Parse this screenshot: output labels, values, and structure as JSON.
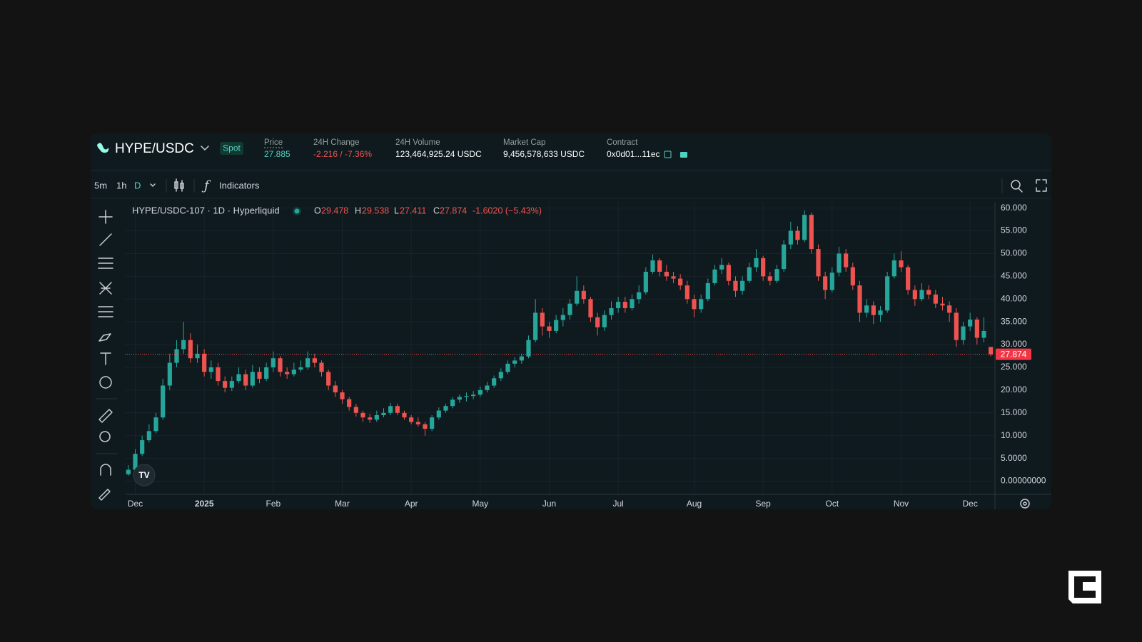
{
  "header": {
    "pair": "HYPE/USDC",
    "market": "Spot",
    "stats": [
      {
        "label": "Price",
        "value": "27.885"
      },
      {
        "label": "24H Change",
        "value": "-2.216 / -7.36%"
      },
      {
        "label": "24H Volume",
        "value": "123,464,925.24 USDC"
      },
      {
        "label": "Market Cap",
        "value": "9,456,578,633 USDC"
      },
      {
        "label": "Contract",
        "value": "0x0d01...11ec"
      }
    ]
  },
  "toolbar": {
    "intervals": [
      "5m",
      "1h",
      "D"
    ],
    "indicators": "Indicators"
  },
  "chart_data": {
    "type": "candlestick",
    "legend_title": "HYPE/USDC-107 · 1D · Hyperliquid",
    "ohlc_labels": [
      "O",
      "H",
      "L",
      "C"
    ],
    "change_label": "-1.6020 (−5.43%)",
    "up_color": "#26a69a",
    "down_color": "#ef5350",
    "grid": true,
    "ylim": [
      -2.9,
      61.2
    ],
    "yticks": [
      {
        "value": 0,
        "label": "0.00000000"
      },
      {
        "value": 5,
        "label": "5.0000"
      },
      {
        "value": 10,
        "label": "10.000"
      },
      {
        "value": 15,
        "label": "15.000"
      },
      {
        "value": 20,
        "label": "20.000"
      },
      {
        "value": 25,
        "label": "25.000"
      },
      {
        "value": 30,
        "label": "30.000"
      },
      {
        "value": 35,
        "label": "35.000"
      },
      {
        "value": 40,
        "label": "40.000"
      },
      {
        "value": 45,
        "label": "45.000"
      },
      {
        "value": 50,
        "label": "50.000"
      },
      {
        "value": 55,
        "label": "55.000"
      },
      {
        "value": 60,
        "label": "60.000"
      }
    ],
    "categories": [
      null,
      "Dec",
      null,
      null,
      null,
      null,
      null,
      null,
      null,
      null,
      null,
      "2025",
      null,
      null,
      null,
      null,
      null,
      null,
      null,
      null,
      null,
      "Feb",
      null,
      null,
      null,
      null,
      null,
      null,
      null,
      null,
      null,
      "Mar",
      null,
      null,
      null,
      null,
      null,
      null,
      null,
      null,
      null,
      "Apr",
      null,
      null,
      null,
      null,
      null,
      null,
      null,
      null,
      null,
      "May",
      null,
      null,
      null,
      null,
      null,
      null,
      null,
      null,
      null,
      "Jun",
      null,
      null,
      null,
      null,
      null,
      null,
      null,
      null,
      null,
      "Jul",
      null,
      null,
      null,
      null,
      null,
      null,
      null,
      null,
      null,
      null,
      "Aug",
      null,
      null,
      null,
      null,
      null,
      null,
      null,
      null,
      null,
      "Sep",
      null,
      null,
      null,
      null,
      null,
      null,
      null,
      null,
      null,
      "Oct",
      null,
      null,
      null,
      null,
      null,
      null,
      null,
      null,
      null,
      "Nov",
      null,
      null,
      null,
      null,
      null,
      null,
      null,
      null,
      null,
      "Dec",
      null,
      null,
      null
    ],
    "ohlc": [
      [
        1.5,
        3.5,
        1.2,
        2.5
      ],
      [
        2.5,
        7,
        2.2,
        6
      ],
      [
        6,
        10,
        5.5,
        9
      ],
      [
        9,
        12.5,
        8.5,
        11
      ],
      [
        11,
        15,
        10.5,
        14
      ],
      [
        14,
        22.5,
        13.5,
        21
      ],
      [
        21,
        28,
        20,
        26
      ],
      [
        26,
        31,
        25,
        29
      ],
      [
        29,
        35,
        28,
        31
      ],
      [
        31,
        32.5,
        26,
        27
      ],
      [
        27,
        30,
        26,
        28
      ],
      [
        28,
        29,
        23,
        24
      ],
      [
        24,
        26.5,
        22.5,
        25
      ],
      [
        25,
        26,
        21,
        22
      ],
      [
        22,
        23,
        19.5,
        20.5
      ],
      [
        20.5,
        23,
        19.8,
        22
      ],
      [
        22,
        25,
        21.5,
        23.5
      ],
      [
        23.5,
        24.5,
        20,
        21
      ],
      [
        21,
        25.5,
        20.5,
        24
      ],
      [
        24,
        25,
        21.5,
        22.5
      ],
      [
        22.5,
        26,
        22,
        25
      ],
      [
        25,
        28.5,
        24,
        27
      ],
      [
        27,
        27.5,
        23,
        24
      ],
      [
        24,
        25,
        22.5,
        23.5
      ],
      [
        23.5,
        26,
        23,
        24.5
      ],
      [
        24.5,
        26.5,
        24,
        25
      ],
      [
        25,
        28.5,
        24.5,
        27
      ],
      [
        27,
        28,
        25,
        26
      ],
      [
        26,
        26.5,
        23,
        24
      ],
      [
        24,
        24.5,
        20,
        21
      ],
      [
        21,
        22,
        18.5,
        19.5
      ],
      [
        19.5,
        20,
        17,
        18
      ],
      [
        18,
        18.5,
        15.5,
        16.3
      ],
      [
        16.3,
        17,
        14.2,
        15
      ],
      [
        15,
        15.5,
        13,
        14
      ],
      [
        14,
        14.8,
        12.8,
        13.5
      ],
      [
        13.5,
        15.5,
        13,
        14.5
      ],
      [
        14.5,
        16,
        14,
        15
      ],
      [
        15,
        17.2,
        14.5,
        16.5
      ],
      [
        16.5,
        17,
        14.5,
        15
      ],
      [
        15,
        15.5,
        13.5,
        14
      ],
      [
        14,
        14.5,
        12.5,
        13
      ],
      [
        13,
        14,
        12,
        12.5
      ],
      [
        12.5,
        13,
        10,
        11.5
      ],
      [
        11.5,
        14.5,
        11,
        14
      ],
      [
        14,
        16.2,
        13.5,
        15.5
      ],
      [
        15.5,
        17,
        15,
        16.5
      ],
      [
        16.5,
        18.5,
        16,
        17.9
      ],
      [
        17.9,
        19,
        17.2,
        18.5
      ],
      [
        18.5,
        19.5,
        17.5,
        18.7
      ],
      [
        18.7,
        19.8,
        18,
        19
      ],
      [
        19,
        20.8,
        18.5,
        20
      ],
      [
        20,
        21.8,
        19.5,
        21
      ],
      [
        21,
        23.2,
        20.5,
        22.6
      ],
      [
        22.6,
        24.8,
        22,
        24
      ],
      [
        24,
        26.5,
        23.5,
        25.8
      ],
      [
        25.8,
        27.2,
        25,
        26.5
      ],
      [
        26.5,
        28,
        25.8,
        27.4
      ],
      [
        27.4,
        32,
        27,
        31
      ],
      [
        31,
        40,
        30.5,
        37
      ],
      [
        37,
        38,
        32,
        34
      ],
      [
        34,
        35,
        31.5,
        33
      ],
      [
        33,
        36.5,
        32.5,
        35.4
      ],
      [
        35.4,
        38,
        34,
        36.5
      ],
      [
        36.5,
        40,
        35.5,
        39
      ],
      [
        39,
        45,
        38.5,
        41.8
      ],
      [
        41.8,
        43,
        39,
        40
      ],
      [
        40,
        40.5,
        35,
        36
      ],
      [
        36,
        37,
        32,
        33.8
      ],
      [
        33.8,
        37.5,
        33,
        36.5
      ],
      [
        36.5,
        39.5,
        35.5,
        38
      ],
      [
        38,
        40.5,
        37,
        39.4
      ],
      [
        39.4,
        40.5,
        37,
        38
      ],
      [
        38,
        41,
        37.5,
        40
      ],
      [
        40,
        43,
        39,
        41.5
      ],
      [
        41.5,
        47,
        41,
        46
      ],
      [
        46,
        49.8,
        45.5,
        48.5
      ],
      [
        48.5,
        49,
        45,
        46
      ],
      [
        46,
        47.5,
        44,
        45
      ],
      [
        45,
        46,
        43.5,
        44.5
      ],
      [
        44.5,
        45.5,
        42,
        43
      ],
      [
        43,
        44,
        39,
        40
      ],
      [
        40,
        41,
        36,
        37.8
      ],
      [
        37.8,
        41,
        37,
        40
      ],
      [
        40,
        44.5,
        39.5,
        43.5
      ],
      [
        43.5,
        47.5,
        43,
        46.5
      ],
      [
        46.5,
        49,
        45.5,
        47.5
      ],
      [
        47.5,
        48,
        43,
        44
      ],
      [
        44,
        45,
        40.5,
        41.8
      ],
      [
        41.8,
        45,
        41,
        44
      ],
      [
        44,
        48,
        43.5,
        47
      ],
      [
        47,
        51,
        46,
        49
      ],
      [
        49,
        49.5,
        44,
        45
      ],
      [
        45,
        46,
        43,
        44
      ],
      [
        44,
        47.5,
        43.5,
        46.6
      ],
      [
        46.6,
        53,
        46,
        52
      ],
      [
        52,
        57,
        51,
        55
      ],
      [
        55,
        56,
        52,
        53
      ],
      [
        53,
        59.5,
        52.5,
        58.5
      ],
      [
        58.5,
        59,
        50,
        51
      ],
      [
        51,
        52,
        44,
        45
      ],
      [
        45,
        46,
        40,
        42
      ],
      [
        42,
        47,
        41.5,
        45.8
      ],
      [
        45.8,
        51.5,
        45,
        50
      ],
      [
        50,
        51,
        46,
        47
      ],
      [
        47,
        48,
        42,
        43
      ],
      [
        43,
        44,
        35,
        37
      ],
      [
        37,
        40,
        36,
        38.6
      ],
      [
        38.6,
        39.5,
        34.5,
        36.5
      ],
      [
        36.5,
        38.5,
        35,
        37.5
      ],
      [
        37.5,
        46,
        37,
        45
      ],
      [
        45,
        50,
        44.5,
        48.5
      ],
      [
        48.5,
        50.5,
        46,
        47
      ],
      [
        47,
        47.5,
        41,
        42
      ],
      [
        42,
        43,
        38.5,
        40
      ],
      [
        40,
        43.5,
        39.5,
        42
      ],
      [
        42,
        43,
        40,
        41
      ],
      [
        41,
        42,
        38,
        39
      ],
      [
        39,
        40.5,
        37.5,
        38.6
      ],
      [
        38.6,
        39.5,
        35,
        37
      ],
      [
        37,
        38,
        29.5,
        31
      ],
      [
        31,
        35,
        30,
        34
      ],
      [
        34,
        37,
        33,
        35.5
      ],
      [
        35.5,
        36,
        30,
        31.5
      ],
      [
        31.5,
        36,
        30.5,
        33
      ],
      [
        29.478,
        29.538,
        27.411,
        27.874
      ]
    ]
  }
}
